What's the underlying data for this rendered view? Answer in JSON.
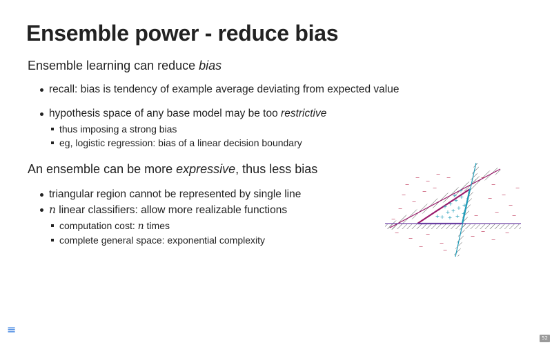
{
  "slide": {
    "title": "Ensemble power - reduce bias",
    "section1": {
      "heading_prefix": "Ensemble learning can reduce ",
      "heading_em": "bias",
      "bullet1": "recall: bias is tendency of example average deviating from expected value",
      "bullet2_prefix": "hypothesis space of any base model may be too ",
      "bullet2_em": "restrictive",
      "sub1": "thus imposing a strong bias",
      "sub2": "eg, logistic regression: bias of a linear decision boundary"
    },
    "section2": {
      "heading_prefix": "An ensemble can be more ",
      "heading_em": "expressive",
      "heading_suffix": ", thus less bias",
      "bullet1": "triangular region cannot be represented by single line",
      "bullet2_var": "n",
      "bullet2_text": " linear classifiers: allow more realizable functions",
      "sub1_prefix": "computation cost: ",
      "sub1_var": "n",
      "sub1_suffix": " times",
      "sub2": "complete general space: exponential complexity"
    }
  },
  "figure": {
    "plus_symbol": "+",
    "minus_symbol": "−",
    "colors": {
      "magenta": "#9a1a6b",
      "cyan": "#1f9bb8",
      "purple": "#6a3fa3",
      "hatch": "#333333"
    }
  },
  "footer": {
    "menu_icon": "≡",
    "page_number": "52"
  }
}
